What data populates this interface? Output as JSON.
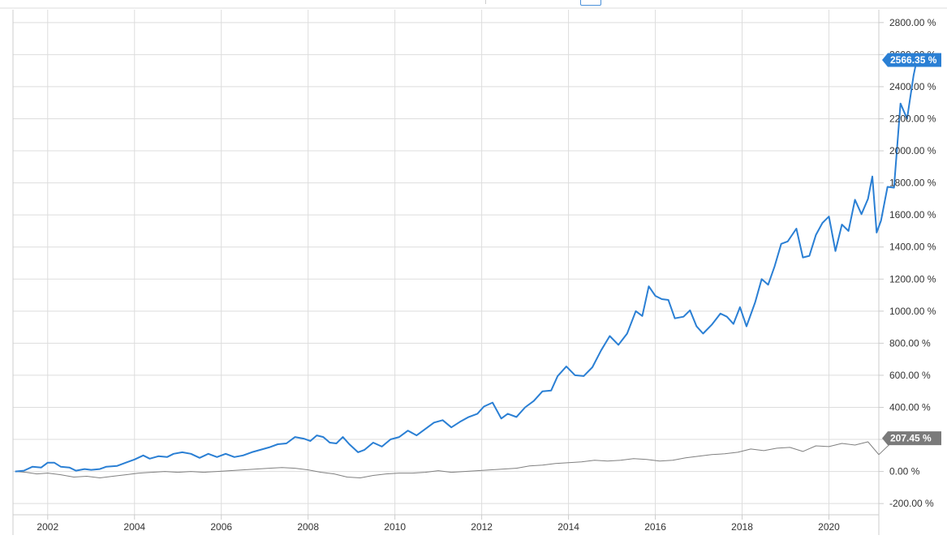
{
  "chart_data": {
    "type": "line",
    "title": "",
    "xlabel": "",
    "ylabel": "",
    "grid": true,
    "xlim": [
      2001.2,
      2021.15
    ],
    "ylim": [
      -270,
      2880
    ],
    "x_tick_values": [
      2002,
      2004,
      2006,
      2008,
      2010,
      2012,
      2014,
      2016,
      2018,
      2020
    ],
    "x_tick_labels": [
      "2002",
      "2004",
      "2006",
      "2008",
      "2010",
      "2012",
      "2014",
      "2016",
      "2018",
      "2020"
    ],
    "y_tick_values": [
      -200,
      0,
      200,
      400,
      600,
      800,
      1000,
      1200,
      1400,
      1600,
      1800,
      2000,
      2200,
      2400,
      2600,
      2800
    ],
    "y_tick_labels": [
      "-200.00 %",
      "0.00 %",
      "200.00 %",
      "400.00 %",
      "600.00 %",
      "800.00 %",
      "1000.00 %",
      "1200.00 %",
      "1400.00 %",
      "1600.00 %",
      "1800.00 %",
      "2000.00 %",
      "2200.00 %",
      "2400.00 %",
      "2600.00 %",
      "2800.00 %"
    ],
    "series": [
      {
        "color": "#2a7fd4",
        "last_value_label": "2566.35 %",
        "last_value": 2566.35,
        "points": [
          [
            2001.25,
            0
          ],
          [
            2001.45,
            5
          ],
          [
            2001.65,
            30
          ],
          [
            2001.85,
            25
          ],
          [
            2002.0,
            55
          ],
          [
            2002.15,
            55
          ],
          [
            2002.3,
            30
          ],
          [
            2002.5,
            25
          ],
          [
            2002.65,
            5
          ],
          [
            2002.85,
            15
          ],
          [
            2003.0,
            10
          ],
          [
            2003.2,
            15
          ],
          [
            2003.35,
            30
          ],
          [
            2003.6,
            35
          ],
          [
            2003.8,
            55
          ],
          [
            2004.0,
            75
          ],
          [
            2004.2,
            100
          ],
          [
            2004.35,
            80
          ],
          [
            2004.55,
            95
          ],
          [
            2004.75,
            90
          ],
          [
            2004.9,
            110
          ],
          [
            2005.1,
            120
          ],
          [
            2005.3,
            110
          ],
          [
            2005.5,
            85
          ],
          [
            2005.7,
            110
          ],
          [
            2005.9,
            90
          ],
          [
            2006.1,
            110
          ],
          [
            2006.3,
            90
          ],
          [
            2006.5,
            100
          ],
          [
            2006.7,
            120
          ],
          [
            2006.9,
            135
          ],
          [
            2007.1,
            150
          ],
          [
            2007.3,
            170
          ],
          [
            2007.5,
            175
          ],
          [
            2007.7,
            215
          ],
          [
            2007.9,
            205
          ],
          [
            2008.05,
            190
          ],
          [
            2008.2,
            225
          ],
          [
            2008.35,
            215
          ],
          [
            2008.5,
            180
          ],
          [
            2008.65,
            175
          ],
          [
            2008.8,
            215
          ],
          [
            2008.95,
            170
          ],
          [
            2009.15,
            120
          ],
          [
            2009.3,
            135
          ],
          [
            2009.5,
            180
          ],
          [
            2009.7,
            155
          ],
          [
            2009.9,
            200
          ],
          [
            2010.1,
            215
          ],
          [
            2010.3,
            255
          ],
          [
            2010.5,
            225
          ],
          [
            2010.7,
            265
          ],
          [
            2010.9,
            305
          ],
          [
            2011.1,
            320
          ],
          [
            2011.3,
            275
          ],
          [
            2011.5,
            310
          ],
          [
            2011.7,
            340
          ],
          [
            2011.9,
            360
          ],
          [
            2012.05,
            405
          ],
          [
            2012.25,
            430
          ],
          [
            2012.45,
            330
          ],
          [
            2012.6,
            360
          ],
          [
            2012.8,
            340
          ],
          [
            2013.0,
            400
          ],
          [
            2013.2,
            440
          ],
          [
            2013.4,
            500
          ],
          [
            2013.6,
            505
          ],
          [
            2013.75,
            595
          ],
          [
            2013.95,
            655
          ],
          [
            2014.15,
            600
          ],
          [
            2014.35,
            595
          ],
          [
            2014.55,
            650
          ],
          [
            2014.75,
            755
          ],
          [
            2014.95,
            845
          ],
          [
            2015.15,
            790
          ],
          [
            2015.35,
            860
          ],
          [
            2015.55,
            1000
          ],
          [
            2015.7,
            970
          ],
          [
            2015.85,
            1155
          ],
          [
            2016.0,
            1095
          ],
          [
            2016.15,
            1075
          ],
          [
            2016.3,
            1070
          ],
          [
            2016.45,
            955
          ],
          [
            2016.65,
            965
          ],
          [
            2016.8,
            1005
          ],
          [
            2016.95,
            905
          ],
          [
            2017.1,
            860
          ],
          [
            2017.3,
            915
          ],
          [
            2017.5,
            985
          ],
          [
            2017.65,
            965
          ],
          [
            2017.8,
            920
          ],
          [
            2017.95,
            1025
          ],
          [
            2018.1,
            905
          ],
          [
            2018.3,
            1055
          ],
          [
            2018.45,
            1200
          ],
          [
            2018.6,
            1165
          ],
          [
            2018.75,
            1280
          ],
          [
            2018.9,
            1420
          ],
          [
            2019.05,
            1435
          ],
          [
            2019.25,
            1515
          ],
          [
            2019.4,
            1335
          ],
          [
            2019.55,
            1345
          ],
          [
            2019.7,
            1475
          ],
          [
            2019.85,
            1550
          ],
          [
            2020.0,
            1590
          ],
          [
            2020.15,
            1375
          ],
          [
            2020.3,
            1540
          ],
          [
            2020.45,
            1500
          ],
          [
            2020.6,
            1695
          ],
          [
            2020.75,
            1605
          ],
          [
            2020.9,
            1700
          ],
          [
            2021.0,
            1840
          ],
          [
            2021.1,
            1490
          ],
          [
            2021.2,
            1565
          ],
          [
            2021.35,
            1775
          ],
          [
            2021.5,
            1770
          ],
          [
            2021.65,
            2295
          ],
          [
            2021.8,
            2200
          ],
          [
            2021.95,
            2470
          ],
          [
            2022.05,
            2600
          ],
          [
            2022.15,
            2566
          ]
        ]
      },
      {
        "color": "#808080",
        "last_value_label": "207.45 %",
        "last_value": 207.45,
        "points": [
          [
            2001.25,
            0
          ],
          [
            2001.5,
            -5
          ],
          [
            2001.75,
            -15
          ],
          [
            2002.0,
            -10
          ],
          [
            2002.3,
            -20
          ],
          [
            2002.6,
            -35
          ],
          [
            2002.9,
            -30
          ],
          [
            2003.2,
            -40
          ],
          [
            2003.5,
            -30
          ],
          [
            2003.8,
            -20
          ],
          [
            2004.1,
            -10
          ],
          [
            2004.4,
            -5
          ],
          [
            2004.7,
            0
          ],
          [
            2005.0,
            -5
          ],
          [
            2005.3,
            0
          ],
          [
            2005.6,
            -5
          ],
          [
            2005.9,
            0
          ],
          [
            2006.2,
            5
          ],
          [
            2006.5,
            10
          ],
          [
            2006.8,
            15
          ],
          [
            2007.1,
            20
          ],
          [
            2007.4,
            25
          ],
          [
            2007.7,
            20
          ],
          [
            2008.0,
            10
          ],
          [
            2008.3,
            -5
          ],
          [
            2008.6,
            -15
          ],
          [
            2008.9,
            -35
          ],
          [
            2009.2,
            -40
          ],
          [
            2009.5,
            -25
          ],
          [
            2009.8,
            -15
          ],
          [
            2010.1,
            -10
          ],
          [
            2010.4,
            -10
          ],
          [
            2010.7,
            -5
          ],
          [
            2011.0,
            5
          ],
          [
            2011.3,
            -5
          ],
          [
            2011.6,
            0
          ],
          [
            2011.9,
            5
          ],
          [
            2012.2,
            10
          ],
          [
            2012.5,
            15
          ],
          [
            2012.8,
            20
          ],
          [
            2013.1,
            35
          ],
          [
            2013.4,
            40
          ],
          [
            2013.7,
            50
          ],
          [
            2014.0,
            55
          ],
          [
            2014.3,
            60
          ],
          [
            2014.6,
            70
          ],
          [
            2014.9,
            65
          ],
          [
            2015.2,
            70
          ],
          [
            2015.5,
            80
          ],
          [
            2015.8,
            75
          ],
          [
            2016.1,
            65
          ],
          [
            2016.4,
            70
          ],
          [
            2016.7,
            85
          ],
          [
            2017.0,
            95
          ],
          [
            2017.3,
            105
          ],
          [
            2017.6,
            110
          ],
          [
            2017.9,
            120
          ],
          [
            2018.2,
            140
          ],
          [
            2018.5,
            130
          ],
          [
            2018.8,
            145
          ],
          [
            2019.1,
            150
          ],
          [
            2019.4,
            125
          ],
          [
            2019.7,
            160
          ],
          [
            2020.0,
            155
          ],
          [
            2020.3,
            175
          ],
          [
            2020.6,
            165
          ],
          [
            2020.9,
            185
          ],
          [
            2021.15,
            105
          ],
          [
            2021.4,
            170
          ],
          [
            2021.7,
            175
          ],
          [
            2021.95,
            195
          ],
          [
            2022.15,
            207
          ]
        ]
      }
    ]
  }
}
